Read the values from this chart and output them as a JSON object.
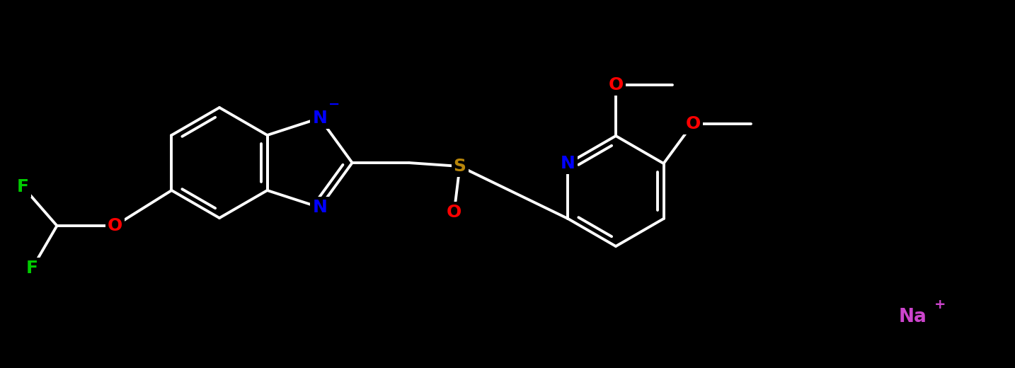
{
  "background_color": "#000000",
  "bond_color": "#ffffff",
  "bond_width": 2.8,
  "atom_colors": {
    "C": "#ffffff",
    "N": "#0000ff",
    "O": "#ff0000",
    "S": "#b8860b",
    "F": "#00cc00",
    "Na": "#cc44cc"
  },
  "font_size": 18,
  "figsize": [
    14.34,
    5.2
  ],
  "dpi": 100,
  "scale": 1.0
}
